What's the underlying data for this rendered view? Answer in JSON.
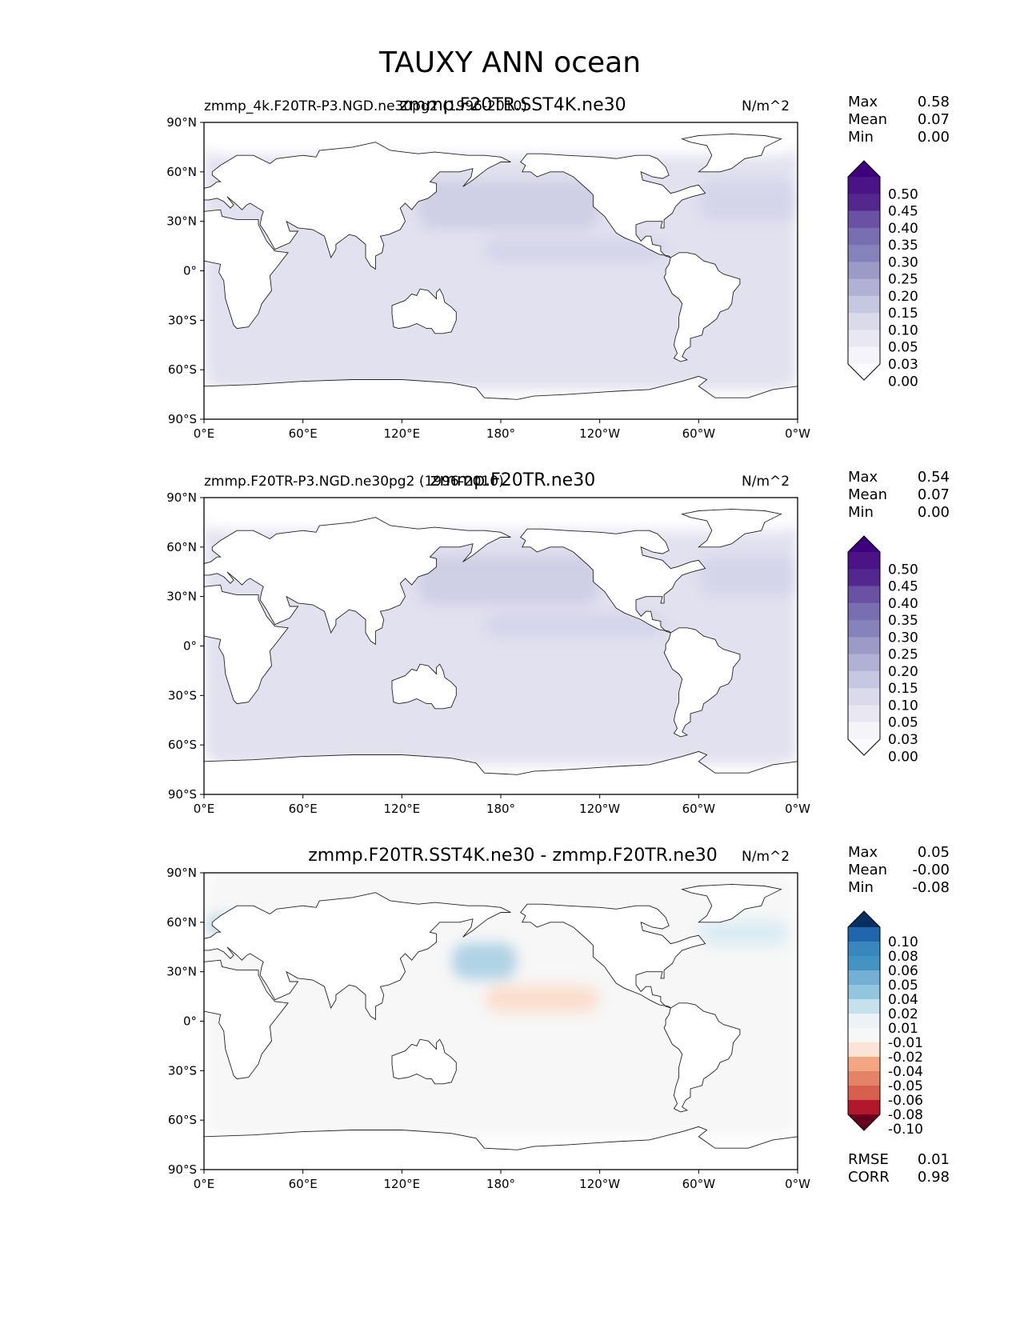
{
  "title": "TAUXY ANN ocean",
  "panels": [
    {
      "id": "test",
      "left_label": "zmmp_4k.F20TR-P3.NGD.ne30pg2 (1996-2010)",
      "center_label": "zmmp.F20TR.SST4K.ne30",
      "units": "N/m^2",
      "stats": [
        {
          "label": "Max",
          "value": "0.58"
        },
        {
          "label": "Mean",
          "value": "0.07"
        },
        {
          "label": "Min",
          "value": "0.00"
        }
      ],
      "colorbar": {
        "labels": [
          "0.50",
          "0.45",
          "0.40",
          "0.35",
          "0.30",
          "0.25",
          "0.20",
          "0.15",
          "0.10",
          "0.05",
          "0.03",
          "0.00"
        ],
        "colors": [
          "#3f007d",
          "#4a1486",
          "#54278f",
          "#6a51a3",
          "#796eb2",
          "#8682bc",
          "#9e9ac8",
          "#b2b1d5",
          "#c6c7e1",
          "#dadaeb",
          "#e9e8f2",
          "#f5f5f9",
          "#fcfbfd"
        ]
      },
      "extra_stats": []
    },
    {
      "id": "ref",
      "left_label": "zmmp.F20TR-P3.NGD.ne30pg2 (1996-2010)",
      "center_label": "zmmp.F20TR.ne30",
      "units": "N/m^2",
      "stats": [
        {
          "label": "Max",
          "value": "0.54"
        },
        {
          "label": "Mean",
          "value": "0.07"
        },
        {
          "label": "Min",
          "value": "0.00"
        }
      ],
      "colorbar": {
        "labels": [
          "0.50",
          "0.45",
          "0.40",
          "0.35",
          "0.30",
          "0.25",
          "0.20",
          "0.15",
          "0.10",
          "0.05",
          "0.03",
          "0.00"
        ],
        "colors": [
          "#3f007d",
          "#4a1486",
          "#54278f",
          "#6a51a3",
          "#796eb2",
          "#8682bc",
          "#9e9ac8",
          "#b2b1d5",
          "#c6c7e1",
          "#dadaeb",
          "#e9e8f2",
          "#f5f5f9",
          "#fcfbfd"
        ]
      },
      "extra_stats": []
    },
    {
      "id": "diff",
      "left_label": "",
      "center_label": "zmmp.F20TR.SST4K.ne30 - zmmp.F20TR.ne30",
      "units": "N/m^2",
      "stats": [
        {
          "label": "Max",
          "value": "0.05"
        },
        {
          "label": "Mean",
          "value": "-0.00"
        },
        {
          "label": "Min",
          "value": "-0.08"
        }
      ],
      "colorbar": {
        "labels": [
          "0.10",
          "0.08",
          "0.06",
          "0.05",
          "0.04",
          "0.02",
          "0.01",
          "-0.01",
          "-0.02",
          "-0.04",
          "-0.05",
          "-0.06",
          "-0.08",
          "-0.10"
        ],
        "colors": [
          "#053061",
          "#2166ac",
          "#3a86be",
          "#4393c3",
          "#74b0d3",
          "#92c5de",
          "#c7e0ed",
          "#ecf2f5",
          "#f7f7f7",
          "#fbe4d6",
          "#f4a582",
          "#e58368",
          "#d6604d",
          "#b2182b",
          "#67001f"
        ]
      },
      "extra_stats": [
        {
          "label": "RMSE",
          "value": "0.01"
        },
        {
          "label": "CORR",
          "value": "0.98"
        }
      ]
    }
  ],
  "axes": {
    "x_ticks": [
      "0°E",
      "60°E",
      "120°E",
      "180°",
      "120°W",
      "60°W",
      "0°W"
    ],
    "y_ticks": [
      "90°N",
      "60°N",
      "30°N",
      "0°",
      "30°S",
      "60°S",
      "90°S"
    ]
  }
}
